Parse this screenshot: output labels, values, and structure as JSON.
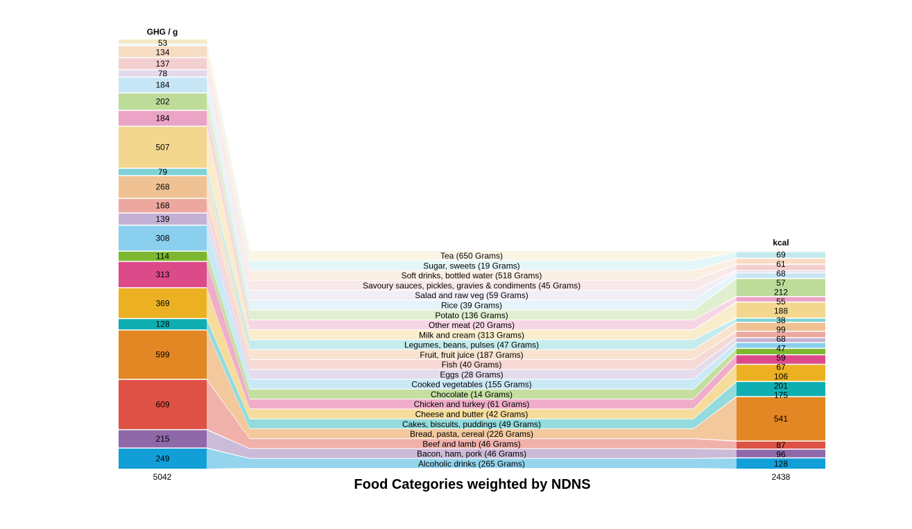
{
  "chart_data": {
    "type": "sankey",
    "title": "Food Categories weighted by NDNS",
    "left_header": "GHG / g",
    "right_header": "kcal",
    "left_total": "5042",
    "right_total": "2438",
    "categories": [
      {
        "label": "Tea (650 Grams)",
        "ghg": 53,
        "kcal": 2,
        "color": "#f6e8c8"
      },
      {
        "label": "Sugar, sweets (19 Grams)",
        "ghg": 5,
        "kcal": 69,
        "color": "#c3eaee"
      },
      {
        "label": "Soft drinks, bottled water (518 Grams)",
        "ghg": 134,
        "kcal": 61,
        "color": "#f7dcc4"
      },
      {
        "label": "Savoury sauces, pickles, gravies & condiments (45 Grams)",
        "ghg": 137,
        "kcal": 68,
        "color": "#f4cfcf"
      },
      {
        "label": "Salad and raw veg (59 Grams)",
        "ghg": 78,
        "kcal": 14,
        "color": "#e3d9ea"
      },
      {
        "label": "Rice (39 Grams)",
        "ghg": 184,
        "kcal": 57,
        "color": "#c6e6f5"
      },
      {
        "label": "Potato (136 Grams)",
        "ghg": 202,
        "kcal": 212,
        "color": "#bddc9a"
      },
      {
        "label": "Other meat (20 Grams)",
        "ghg": 184,
        "kcal": 55,
        "color": "#eba3c6"
      },
      {
        "label": "Milk and cream (313 Grams)",
        "ghg": 507,
        "kcal": 188,
        "color": "#f4d78e"
      },
      {
        "label": "Legumes, beans, pulses (47 Grams)",
        "ghg": 79,
        "kcal": 38,
        "color": "#7fd3d6"
      },
      {
        "label": "Fruit, fruit juice (187 Grams)",
        "ghg": 268,
        "kcal": 99,
        "color": "#f0c293"
      },
      {
        "label": "Fish (40 Grams)",
        "ghg": 168,
        "kcal": 68,
        "color": "#eca89f"
      },
      {
        "label": "Eggs (28 Grams)",
        "ghg": 139,
        "kcal": 47,
        "color": "#c4b1d4"
      },
      {
        "label": "Cooked vegetables (155 Grams)",
        "ghg": 308,
        "kcal": 59,
        "color": "#8acfed"
      },
      {
        "label": "Chocolate (14 Grams)",
        "ghg": 114,
        "kcal": 67,
        "color": "#7cb82f"
      },
      {
        "label": "Chicken and turkey (61 Grams)",
        "ghg": 313,
        "kcal": 106,
        "color": "#dc4a8a"
      },
      {
        "label": "Cheese and butter (42 Grams)",
        "ghg": 369,
        "kcal": 201,
        "color": "#ecb122"
      },
      {
        "label": "Cakes, biscuits, puddings (49 Grams)",
        "ghg": 128,
        "kcal": 175,
        "color": "#0fafb1"
      },
      {
        "label": "Bread, pasta, cereal (226 Grams)",
        "ghg": 599,
        "kcal": 541,
        "color": "#e38624"
      },
      {
        "label": "Beef and lamb (46 Grams)",
        "ghg": 609,
        "kcal": 87,
        "color": "#dd5245"
      },
      {
        "label": "Bacon, ham, pork (46 Grams)",
        "ghg": 215,
        "kcal": 96,
        "color": "#8e68a8"
      },
      {
        "label": "Alcoholic drinks (265 Grams)",
        "ghg": 249,
        "kcal": 128,
        "color": "#129fd8"
      }
    ]
  }
}
